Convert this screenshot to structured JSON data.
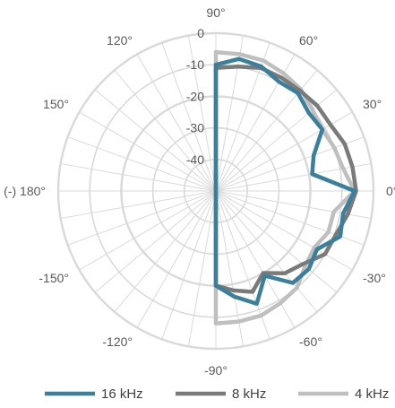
{
  "chart_data": {
    "type": "line",
    "subtype": "polar",
    "title": "",
    "angle_unit": "degrees",
    "angular_range": [
      -90,
      90
    ],
    "angular_grid_step": 10,
    "radial_range": [
      -50,
      0
    ],
    "radial_unit": "dB",
    "grid": true,
    "legend_position": "bottom",
    "angle_tick_labels": [
      {
        "angle": 90,
        "label": "90°"
      },
      {
        "angle": 60,
        "label": "60°"
      },
      {
        "angle": 30,
        "label": "30°"
      },
      {
        "angle": 0,
        "label": "0°"
      },
      {
        "angle": -30,
        "label": "-30°"
      },
      {
        "angle": -60,
        "label": "-60°"
      },
      {
        "angle": -90,
        "label": "-90°"
      },
      {
        "angle": -120,
        "label": "-120°"
      },
      {
        "angle": -150,
        "label": "-150°"
      },
      {
        "angle": 180,
        "label": "(-) 180°"
      },
      {
        "angle": 150,
        "label": "150°"
      },
      {
        "angle": 120,
        "label": "120°"
      }
    ],
    "radial_tick_labels": [
      {
        "value": 0,
        "label": "0"
      },
      {
        "value": -10,
        "label": "-10"
      },
      {
        "value": -20,
        "label": "-20"
      },
      {
        "value": -30,
        "label": "-30"
      },
      {
        "value": -40,
        "label": "-40"
      }
    ],
    "series": [
      {
        "name": "16 kHz",
        "color": "#3a7f9c",
        "points": [
          [
            90,
            -10
          ],
          [
            80,
            -7.5
          ],
          [
            70,
            -8
          ],
          [
            60,
            -10
          ],
          [
            50,
            -9.5
          ],
          [
            40,
            -11.5
          ],
          [
            30,
            -11
          ],
          [
            20,
            -17
          ],
          [
            10,
            -19
          ],
          [
            0,
            -6
          ],
          [
            -10,
            -9
          ],
          [
            -20,
            -8
          ],
          [
            -30,
            -13
          ],
          [
            -40,
            -11.5
          ],
          [
            -50,
            -12
          ],
          [
            -60,
            -19
          ],
          [
            -70,
            -12
          ],
          [
            -80,
            -16
          ],
          [
            -90,
            -20
          ]
        ]
      },
      {
        "name": "8 kHz",
        "color": "#7a7a7a",
        "points": [
          [
            90,
            -11
          ],
          [
            80,
            -10
          ],
          [
            70,
            -8.5
          ],
          [
            60,
            -8.5
          ],
          [
            50,
            -8.5
          ],
          [
            40,
            -8
          ],
          [
            30,
            -8
          ],
          [
            20,
            -6.5
          ],
          [
            10,
            -6
          ],
          [
            0,
            -5.5
          ],
          [
            -10,
            -7.5
          ],
          [
            -20,
            -9.5
          ],
          [
            -30,
            -10
          ],
          [
            -40,
            -14
          ],
          [
            -50,
            -16
          ],
          [
            -60,
            -20
          ],
          [
            -70,
            -16
          ],
          [
            -80,
            -18
          ],
          [
            -90,
            -20
          ]
        ]
      },
      {
        "name": "4 kHz",
        "color": "#bfbfbf",
        "points": [
          [
            90,
            -6
          ],
          [
            80,
            -6
          ],
          [
            70,
            -6
          ],
          [
            60,
            -7
          ],
          [
            50,
            -8
          ],
          [
            40,
            -10
          ],
          [
            30,
            -11
          ],
          [
            20,
            -10
          ],
          [
            10,
            -9
          ],
          [
            0,
            -6
          ],
          [
            -10,
            -12
          ],
          [
            -20,
            -12
          ],
          [
            -30,
            -14
          ],
          [
            -40,
            -13
          ],
          [
            -50,
            -10
          ],
          [
            -60,
            -9
          ],
          [
            -70,
            -8
          ],
          [
            -80,
            -8
          ],
          [
            -90,
            -8
          ]
        ]
      }
    ]
  }
}
